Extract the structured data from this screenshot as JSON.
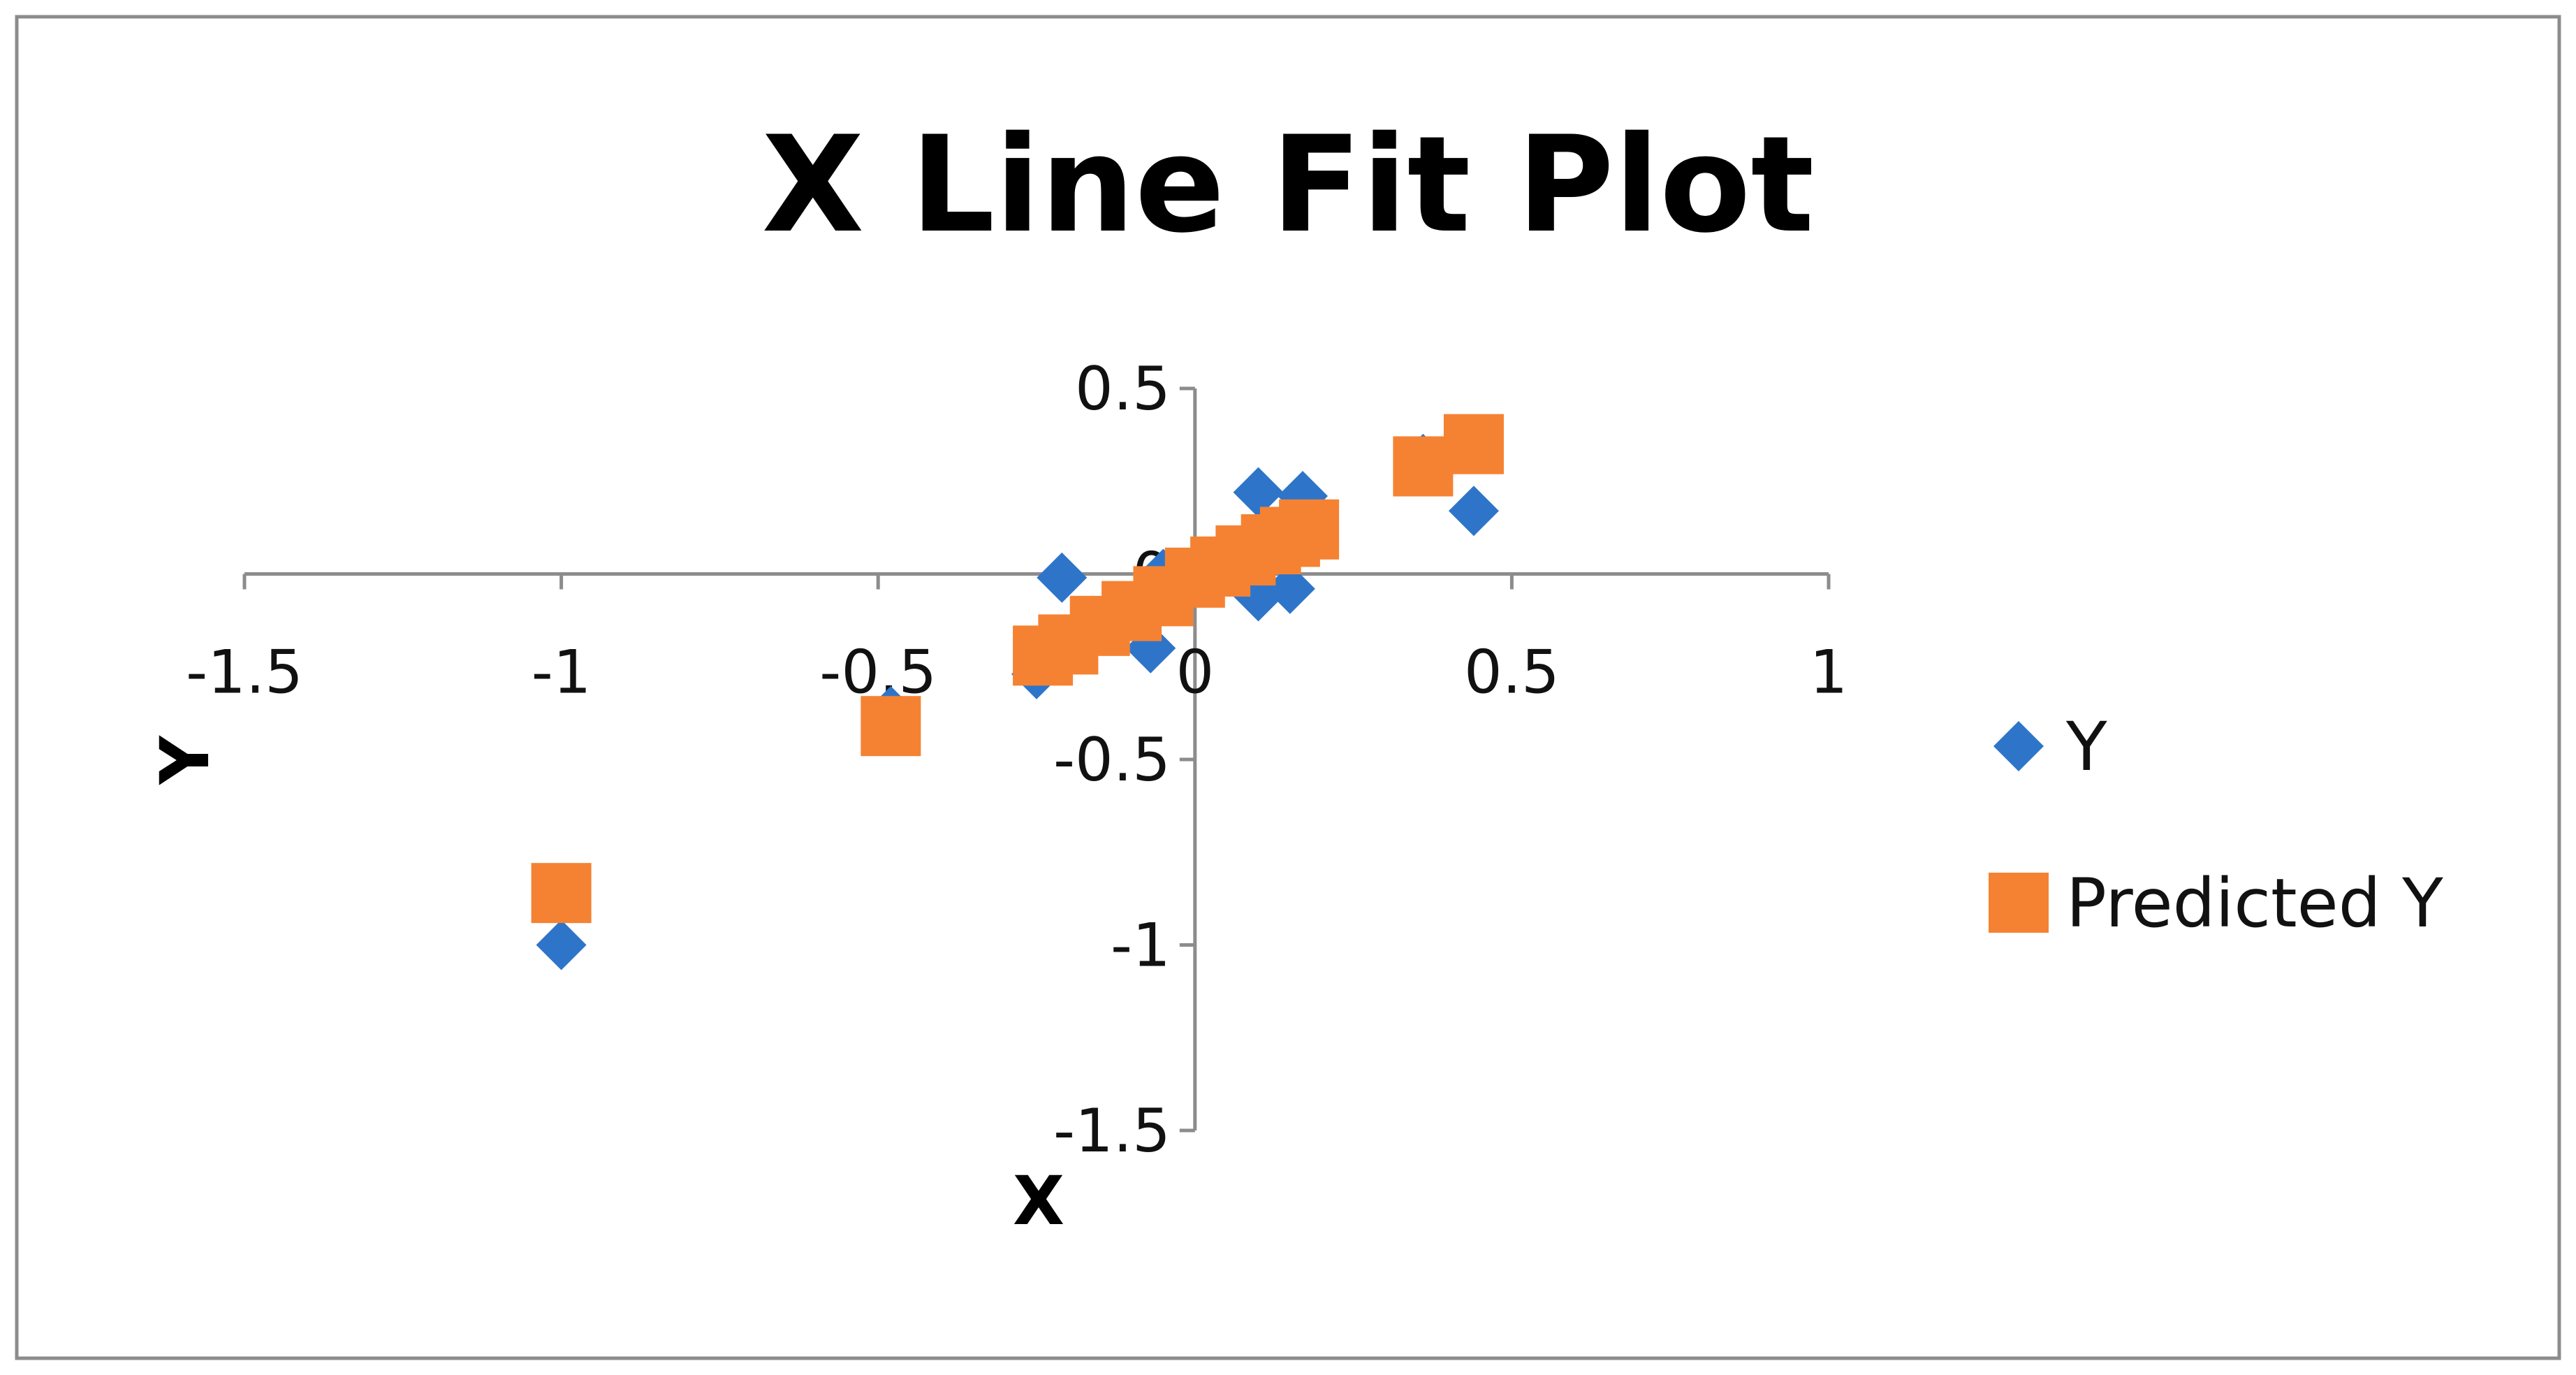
{
  "chart_data": {
    "type": "scatter",
    "title": "X Line Fit  Plot",
    "xlabel": "X",
    "ylabel": "Y",
    "xlim": [
      -1.5,
      1
    ],
    "ylim": [
      -1.5,
      0.5
    ],
    "x_ticks": [
      "-1.5",
      "-1",
      "-0.5",
      "0",
      "0.5",
      "1"
    ],
    "y_ticks": [
      "0.5",
      "0",
      "-0.5",
      "-1",
      "-1.5"
    ],
    "legend_position": "right",
    "series": [
      {
        "name": "Y",
        "marker": "diamond",
        "color": "#2E75C9",
        "points": [
          {
            "x": -1.0,
            "y": -1.0
          },
          {
            "x": -0.48,
            "y": -0.37
          },
          {
            "x": -0.25,
            "y": -0.27
          },
          {
            "x": -0.21,
            "y": -0.01
          },
          {
            "x": -0.07,
            "y": -0.2
          },
          {
            "x": -0.05,
            "y": 0.0
          },
          {
            "x": 0.1,
            "y": 0.22
          },
          {
            "x": 0.17,
            "y": 0.21
          },
          {
            "x": 0.1,
            "y": -0.06
          },
          {
            "x": 0.15,
            "y": -0.04
          },
          {
            "x": 0.36,
            "y": 0.31
          },
          {
            "x": 0.44,
            "y": 0.17
          }
        ]
      },
      {
        "name": "Predicted Y",
        "marker": "square",
        "color": "#F58232",
        "points": [
          {
            "x": -1.0,
            "y": -0.86
          },
          {
            "x": -0.48,
            "y": -0.41
          },
          {
            "x": -0.24,
            "y": -0.22
          },
          {
            "x": -0.2,
            "y": -0.19
          },
          {
            "x": -0.15,
            "y": -0.14
          },
          {
            "x": -0.1,
            "y": -0.1
          },
          {
            "x": -0.05,
            "y": -0.06
          },
          {
            "x": 0.0,
            "y": -0.01
          },
          {
            "x": 0.04,
            "y": 0.02
          },
          {
            "x": 0.08,
            "y": 0.05
          },
          {
            "x": 0.12,
            "y": 0.08
          },
          {
            "x": 0.15,
            "y": 0.1
          },
          {
            "x": 0.18,
            "y": 0.12
          },
          {
            "x": 0.36,
            "y": 0.29
          },
          {
            "x": 0.44,
            "y": 0.35
          }
        ]
      }
    ]
  }
}
